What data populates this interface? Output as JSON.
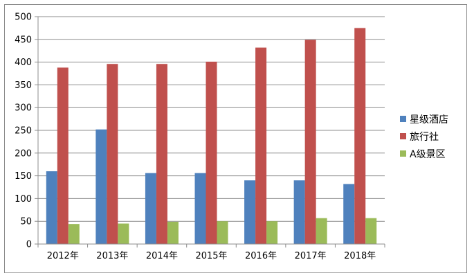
{
  "chart_data": {
    "type": "bar",
    "title": "",
    "xlabel": "",
    "ylabel": "",
    "categories": [
      "2012年",
      "2013年",
      "2014年",
      "2015年",
      "2016年",
      "2017年",
      "2018年"
    ],
    "series": [
      {
        "name": "星级酒店",
        "color": "#4F81BD",
        "values": [
          160,
          252,
          156,
          156,
          140,
          140,
          132
        ]
      },
      {
        "name": "旅行社",
        "color": "#C0504D",
        "values": [
          388,
          396,
          396,
          401,
          432,
          449,
          475
        ]
      },
      {
        "name": "A级景区",
        "color": "#9BBB59",
        "values": [
          44,
          45,
          49,
          50,
          50,
          57,
          57
        ]
      }
    ],
    "ylim": [
      0,
      500
    ],
    "yticks": [
      0,
      50,
      100,
      150,
      200,
      250,
      300,
      350,
      400,
      450,
      500
    ],
    "grid": true,
    "legend": "right"
  }
}
